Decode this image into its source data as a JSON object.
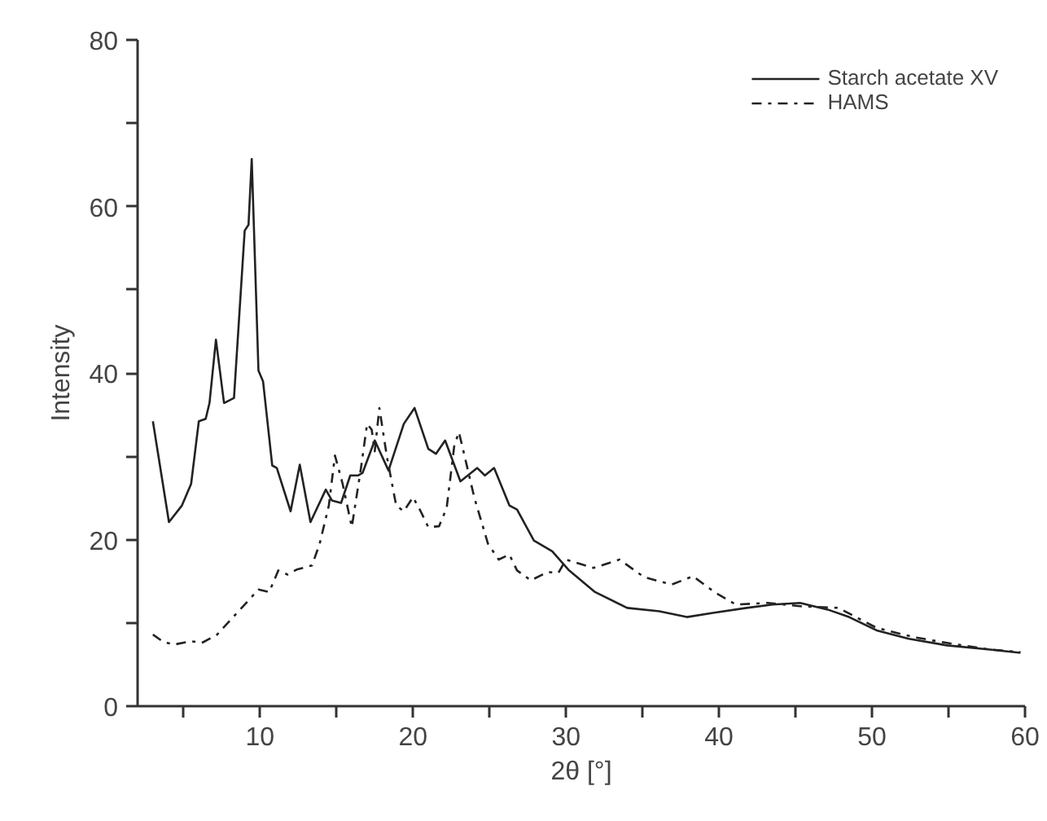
{
  "chart_data": {
    "type": "line",
    "xlabel": "2θ [°]",
    "ylabel": "Intensity",
    "xlim": [
      2,
      60
    ],
    "ylim": [
      0,
      80
    ],
    "xticks": [
      {
        "value": 5,
        "label": null
      },
      10,
      {
        "value": 15,
        "label": null
      },
      20,
      {
        "value": 25,
        "label": null
      },
      30,
      {
        "value": 35,
        "label": null
      },
      40,
      {
        "value": 45,
        "label": null
      },
      50,
      {
        "value": 55,
        "label": null
      },
      60
    ],
    "yticks": [
      0,
      {
        "value": 10,
        "label": null
      },
      20,
      {
        "value": 30,
        "label": null
      },
      40,
      {
        "value": 50,
        "label": null
      },
      60,
      {
        "value": 70,
        "label": null
      },
      80
    ],
    "grid": false,
    "legend": "top right",
    "marker": "none",
    "series": [
      {
        "name": "Starch acetate XV",
        "color": "#222222",
        "line_style": "solid",
        "x": [
          3.0,
          4.05,
          4.9,
          5.5,
          6.0,
          6.45,
          6.7,
          7.12,
          7.65,
          8.3,
          9.0,
          9.25,
          9.46,
          9.9,
          10.2,
          10.8,
          11.1,
          12.0,
          12.6,
          13.3,
          14.3,
          14.7,
          15.3,
          15.9,
          16.4,
          16.7,
          17.5,
          18.4,
          19.4,
          20.1,
          21.0,
          21.5,
          22.1,
          23.1,
          24.2,
          24.7,
          25.3,
          26.3,
          26.8,
          27.9,
          29.1,
          30.2,
          31.9,
          34.0,
          36.1,
          37.9,
          39.6,
          41.8,
          43.5,
          45.3,
          47.1,
          48.5,
          50.3,
          52.4,
          54.9,
          57.7,
          59.7
        ],
        "values": [
          34.2,
          22.1,
          24.1,
          26.7,
          34.2,
          34.5,
          36.4,
          44.0,
          36.4,
          37.0,
          57.1,
          57.8,
          65.7,
          40.3,
          39.0,
          28.9,
          28.6,
          23.4,
          29.0,
          22.1,
          26.0,
          24.7,
          24.4,
          27.7,
          27.7,
          28.0,
          31.9,
          28.3,
          33.9,
          35.8,
          30.9,
          30.3,
          31.9,
          27.0,
          28.6,
          27.7,
          28.6,
          24.1,
          23.6,
          19.9,
          18.6,
          16.3,
          13.7,
          11.8,
          11.4,
          10.7,
          11.2,
          11.8,
          12.2,
          12.4,
          11.6,
          10.7,
          9.1,
          8.1,
          7.3,
          6.8,
          6.4
        ]
      },
      {
        "name": "HAMS",
        "color": "#222222",
        "line_style": "dashdot",
        "x": [
          3.0,
          3.7,
          4.4,
          5.5,
          6.2,
          7.2,
          8.6,
          9.9,
          10.6,
          11.2,
          11.8,
          12.4,
          13.4,
          13.9,
          14.5,
          14.9,
          15.4,
          16.0,
          16.6,
          17.0,
          17.3,
          17.5,
          17.8,
          18.3,
          18.9,
          19.4,
          20.0,
          20.5,
          21.0,
          21.7,
          22.2,
          22.7,
          23.0,
          23.3,
          24.0,
          24.9,
          25.6,
          26.3,
          26.8,
          27.7,
          28.8,
          29.5,
          30.0,
          31.8,
          33.5,
          35.1,
          36.9,
          38.3,
          39.7,
          41.1,
          43.2,
          45.3,
          47.8,
          50.3,
          52.7,
          55.2,
          57.7,
          59.7
        ],
        "values": [
          8.6,
          7.7,
          7.4,
          7.8,
          7.6,
          8.6,
          11.4,
          14.0,
          13.7,
          16.3,
          15.8,
          16.4,
          16.9,
          19.5,
          24.1,
          30.1,
          26.7,
          21.5,
          28.6,
          33.9,
          33.2,
          30.6,
          35.8,
          29.9,
          24.1,
          23.4,
          25.1,
          23.4,
          21.5,
          21.6,
          23.8,
          31.3,
          32.9,
          30.6,
          25.1,
          19.5,
          17.6,
          18.2,
          16.3,
          15.1,
          16.1,
          16.0,
          17.6,
          16.6,
          17.6,
          15.5,
          14.6,
          15.6,
          13.7,
          12.2,
          12.4,
          12.0,
          11.8,
          9.4,
          8.3,
          7.5,
          6.8,
          6.5
        ]
      }
    ]
  }
}
